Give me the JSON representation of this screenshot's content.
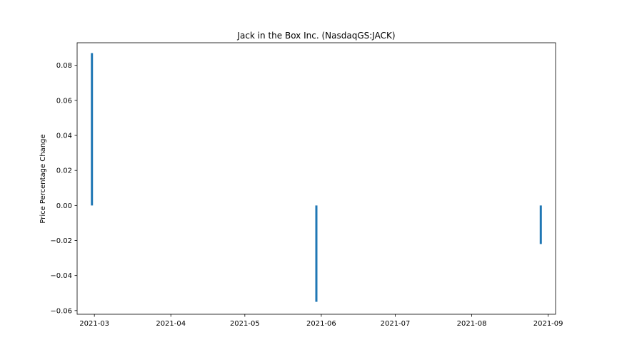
{
  "chart_data": {
    "type": "bar",
    "title": "Jack in the Box Inc. (NasdaqGS:JACK)",
    "xlabel": "",
    "ylabel": "Price Percentage Change",
    "x": [
      "2021-02-28",
      "2021-05-30",
      "2021-08-29"
    ],
    "values": [
      0.087,
      -0.055,
      -0.022
    ],
    "xlim": [
      "2021-02-22",
      "2021-09-04"
    ],
    "ylim": [
      -0.0621,
      0.0929
    ],
    "x_ticks": [
      "2021-03",
      "2021-04",
      "2021-05",
      "2021-06",
      "2021-07",
      "2021-08",
      "2021-09"
    ],
    "x_tick_dates": [
      "2021-03-01",
      "2021-04-01",
      "2021-05-01",
      "2021-06-01",
      "2021-07-01",
      "2021-08-01",
      "2021-09-01"
    ],
    "y_ticks": [
      0.08,
      0.06,
      0.04,
      0.02,
      0.0,
      -0.02,
      -0.04,
      -0.06
    ],
    "y_tick_labels": [
      "0.08",
      "0.06",
      "0.04",
      "0.02",
      "0.00",
      "−0.02",
      "−0.04",
      "−0.06"
    ],
    "grid": false,
    "bar_color": "#1f77b4"
  }
}
